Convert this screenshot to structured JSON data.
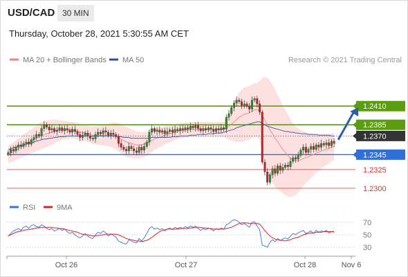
{
  "header": {
    "pair": "USD/CAD",
    "timeframe": "30 MIN",
    "timestamp": "Thursday, October 28, 2021 5:30:55 AM CET"
  },
  "legend": {
    "items": [
      {
        "label": "MA 20 + Bollinger Bands",
        "color": "#f08080"
      },
      {
        "label": "MA 50",
        "color": "#2e4e9a"
      }
    ],
    "credit": "Research © 2021 Trading Central"
  },
  "rsi_legend": {
    "items": [
      {
        "label": "RSI",
        "color": "#3a6fd8"
      },
      {
        "label": "9MA",
        "color": "#e02020"
      }
    ]
  },
  "colors": {
    "resistance": "#5a9e0f",
    "support_blue": "#2f6fd6",
    "support_red": "#e03030",
    "current": "#333333",
    "arrow": "#2a5db0",
    "band_fill": "#fde0e0"
  },
  "chart_data": [
    {
      "type": "candlestick",
      "title": "USD/CAD",
      "ylim": [
        1.229,
        1.247
      ],
      "x_ticks": [
        "Oct 26",
        "Oct 27",
        "Oct 28",
        "Nov 6"
      ],
      "levels": [
        {
          "value": 1.241,
          "label": "1.2410",
          "style": "resistance"
        },
        {
          "value": 1.2385,
          "label": "1.2385",
          "style": "resistance"
        },
        {
          "value": 1.237,
          "label": "1.2370",
          "style": "current"
        },
        {
          "value": 1.2345,
          "label": "1.2345",
          "style": "support_blue"
        },
        {
          "value": 1.2325,
          "label": "1.2325",
          "style": "support_red"
        },
        {
          "value": 1.23,
          "label": "1.2300",
          "style": "support_red"
        }
      ],
      "close": [
        1.2348,
        1.2352,
        1.235,
        1.2355,
        1.2358,
        1.2356,
        1.236,
        1.2362,
        1.2359,
        1.2365,
        1.2368,
        1.2372,
        1.237,
        1.238,
        1.2385,
        1.2382,
        1.2378,
        1.238,
        1.2376,
        1.2378,
        1.2381,
        1.2377,
        1.238,
        1.2378,
        1.2375,
        1.2379,
        1.2376,
        1.2372,
        1.2368,
        1.2371,
        1.2374,
        1.237,
        1.2367,
        1.2366,
        1.2372,
        1.2375,
        1.2373,
        1.2377,
        1.2375,
        1.2371,
        1.2374,
        1.2372,
        1.2369,
        1.236,
        1.2355,
        1.2352,
        1.235,
        1.2356,
        1.2353,
        1.235,
        1.2348,
        1.2355,
        1.2351,
        1.2356,
        1.2362,
        1.2375,
        1.238,
        1.2376,
        1.2378,
        1.2375,
        1.2377,
        1.2373,
        1.2376,
        1.2378,
        1.2375,
        1.2379,
        1.2377,
        1.238,
        1.2378,
        1.2381,
        1.2379,
        1.2383,
        1.2381,
        1.2384,
        1.238,
        1.2377,
        1.238,
        1.2378,
        1.2381,
        1.2379,
        1.2376,
        1.238,
        1.2378,
        1.2381,
        1.2379,
        1.2395,
        1.24,
        1.2408,
        1.2414,
        1.2418,
        1.2416,
        1.2411,
        1.2413,
        1.241,
        1.2406,
        1.2418,
        1.242,
        1.2413,
        1.2402,
        1.2335,
        1.2322,
        1.2308,
        1.2318,
        1.2326,
        1.232,
        1.233,
        1.2324,
        1.2328,
        1.2331,
        1.2329,
        1.2336,
        1.2341,
        1.2339,
        1.2344,
        1.2351,
        1.2355,
        1.2348,
        1.2352,
        1.2356,
        1.2352,
        1.2358,
        1.2355,
        1.236,
        1.2358,
        1.2361,
        1.2357,
        1.2363,
        1.236
      ],
      "ma50": [
        1.2352,
        1.2353,
        1.2354,
        1.2355,
        1.2356,
        1.2357,
        1.2358,
        1.2359,
        1.236,
        1.2361,
        1.2362,
        1.2363,
        1.2364,
        1.2365,
        1.2366,
        1.2366,
        1.2367,
        1.2367,
        1.2368,
        1.2368,
        1.2369,
        1.2369,
        1.2369,
        1.237,
        1.237,
        1.237,
        1.237,
        1.237,
        1.237,
        1.237,
        1.237,
        1.237,
        1.237,
        1.237,
        1.237,
        1.237,
        1.237,
        1.237,
        1.237,
        1.237,
        1.237,
        1.237,
        1.237,
        1.2369,
        1.2369,
        1.2368,
        1.2368,
        1.2368,
        1.2367,
        1.2367,
        1.2367,
        1.2367,
        1.2367,
        1.2367,
        1.2367,
        1.2367,
        1.2368,
        1.2368,
        1.2368,
        1.2368,
        1.2368,
        1.2368,
        1.2368,
        1.2368,
        1.2369,
        1.2369,
        1.2369,
        1.237,
        1.237,
        1.237,
        1.237,
        1.2371,
        1.2371,
        1.2371,
        1.2372,
        1.2372,
        1.2372,
        1.2372,
        1.2373,
        1.2373,
        1.2373,
        1.2374,
        1.2374,
        1.2374,
        1.2375,
        1.2376,
        1.2377,
        1.2378,
        1.2379,
        1.2381,
        1.2382,
        1.2383,
        1.2384,
        1.2385,
        1.2386,
        1.2387,
        1.2388,
        1.2389,
        1.2389,
        1.2387,
        1.2385,
        1.2383,
        1.2382,
        1.2381,
        1.238,
        1.2379,
        1.2378,
        1.2377,
        1.2376,
        1.2376,
        1.2375,
        1.2375,
        1.2374,
        1.2374,
        1.2373,
        1.2373,
        1.2373,
        1.2372,
        1.2372,
        1.2372,
        1.2372,
        1.2371,
        1.2371,
        1.2371,
        1.2371,
        1.2371,
        1.237,
        1.237
      ],
      "ma20": [
        1.2345,
        1.2347,
        1.2349,
        1.2351,
        1.2353,
        1.2355,
        1.2357,
        1.2359,
        1.2361,
        1.2363,
        1.2365,
        1.2367,
        1.2369,
        1.2371,
        1.2372,
        1.2373,
        1.2374,
        1.2375,
        1.2376,
        1.2377,
        1.2377,
        1.2378,
        1.2378,
        1.2378,
        1.2378,
        1.2378,
        1.2377,
        1.2376,
        1.2375,
        1.2375,
        1.2374,
        1.2373,
        1.2372,
        1.2371,
        1.2371,
        1.2371,
        1.2371,
        1.2371,
        1.2371,
        1.2371,
        1.2371,
        1.2371,
        1.237,
        1.2368,
        1.2366,
        1.2364,
        1.2362,
        1.2361,
        1.236,
        1.2359,
        1.2358,
        1.2358,
        1.2358,
        1.2359,
        1.236,
        1.2362,
        1.2364,
        1.2366,
        1.2367,
        1.2368,
        1.2369,
        1.2371,
        1.2372,
        1.2373,
        1.2374,
        1.2375,
        1.2376,
        1.2377,
        1.2377,
        1.2378,
        1.2378,
        1.2378,
        1.2379,
        1.2379,
        1.2379,
        1.2379,
        1.2379,
        1.2379,
        1.2379,
        1.2379,
        1.2379,
        1.2379,
        1.2379,
        1.2379,
        1.2379,
        1.2381,
        1.2383,
        1.2386,
        1.2389,
        1.2392,
        1.2395,
        1.2397,
        1.2399,
        1.24,
        1.2401,
        1.2403,
        1.2405,
        1.2405,
        1.2404,
        1.2398,
        1.2391,
        1.2384,
        1.2378,
        1.2373,
        1.2367,
        1.2362,
        1.2357,
        1.2352,
        1.2348,
        1.2344,
        1.234,
        1.2338,
        1.2337,
        1.2337,
        1.2338,
        1.234,
        1.2341,
        1.2342,
        1.2344,
        1.2345,
        1.2347,
        1.2348,
        1.235,
        1.2351,
        1.2352,
        1.2353,
        1.2355,
        1.2356
      ],
      "bollinger_width": [
        0.0012,
        0.0012,
        0.0013,
        0.0013,
        0.0014,
        0.0014,
        0.0015,
        0.0015,
        0.0016,
        0.0016,
        0.0017,
        0.0017,
        0.0018,
        0.0018,
        0.0018,
        0.0018,
        0.0017,
        0.0017,
        0.0016,
        0.0015,
        0.0014,
        0.0013,
        0.0012,
        0.0012,
        0.0011,
        0.0011,
        0.0011,
        0.0011,
        0.0011,
        0.0011,
        0.0011,
        0.0011,
        0.0011,
        0.0012,
        0.0012,
        0.0013,
        0.0013,
        0.0014,
        0.0014,
        0.0015,
        0.0016,
        0.0017,
        0.0018,
        0.0019,
        0.002,
        0.002,
        0.002,
        0.002,
        0.0019,
        0.0019,
        0.0018,
        0.0018,
        0.0017,
        0.0017,
        0.0016,
        0.0016,
        0.0015,
        0.0015,
        0.0014,
        0.0013,
        0.0013,
        0.0012,
        0.0012,
        0.0011,
        0.0011,
        0.001,
        0.001,
        0.001,
        0.001,
        0.001,
        0.001,
        0.001,
        0.001,
        0.001,
        0.001,
        0.001,
        0.001,
        0.001,
        0.001,
        0.001,
        0.001,
        0.001,
        0.001,
        0.001,
        0.001,
        0.0014,
        0.0018,
        0.0022,
        0.0026,
        0.003,
        0.0033,
        0.0035,
        0.0036,
        0.0036,
        0.0036,
        0.0036,
        0.0036,
        0.0036,
        0.004,
        0.005,
        0.0058,
        0.0064,
        0.0066,
        0.0066,
        0.0065,
        0.0063,
        0.0061,
        0.0059,
        0.0057,
        0.0055,
        0.0052,
        0.0049,
        0.0046,
        0.0043,
        0.004,
        0.0037,
        0.0034,
        0.0032,
        0.003,
        0.0028,
        0.0026,
        0.0025,
        0.0023,
        0.0022,
        0.0021,
        0.002,
        0.0019,
        0.0018
      ],
      "projection": {
        "from": 1.2365,
        "to": 1.241
      }
    },
    {
      "type": "line",
      "title": "RSI",
      "ylim": [
        20,
        80
      ],
      "y_ticks": [
        70,
        50,
        30
      ],
      "series": [
        {
          "name": "RSI",
          "values": [
            48,
            52,
            56,
            58,
            60,
            57,
            62,
            64,
            60,
            65,
            66,
            63,
            62,
            66,
            64,
            60,
            58,
            60,
            56,
            58,
            60,
            57,
            59,
            55,
            52,
            54,
            50,
            47,
            45,
            48,
            52,
            48,
            45,
            44,
            50,
            54,
            52,
            56,
            53,
            48,
            51,
            49,
            46,
            40,
            38,
            36,
            35,
            42,
            40,
            38,
            37,
            44,
            40,
            45,
            52,
            60,
            63,
            59,
            61,
            58,
            60,
            56,
            59,
            61,
            58,
            62,
            60,
            62,
            60,
            63,
            61,
            64,
            62,
            64,
            60,
            57,
            60,
            58,
            61,
            59,
            56,
            60,
            58,
            61,
            59,
            66,
            68,
            72,
            74,
            73,
            70,
            66,
            68,
            65,
            62,
            70,
            71,
            64,
            58,
            33,
            32,
            30,
            38,
            42,
            39,
            44,
            41,
            43,
            45,
            43,
            48,
            52,
            50,
            53,
            55,
            57,
            52,
            54,
            56,
            52,
            57,
            54,
            56,
            55,
            57,
            53,
            55,
            54
          ]
        },
        {
          "name": "9MA",
          "values": [
            48,
            50,
            52,
            54,
            55,
            56,
            57,
            58,
            58,
            59,
            60,
            61,
            61,
            62,
            62,
            62,
            62,
            62,
            61,
            61,
            60,
            60,
            59,
            58,
            57,
            56,
            55,
            54,
            52,
            51,
            50,
            50,
            49,
            48,
            48,
            49,
            49,
            50,
            51,
            51,
            51,
            51,
            51,
            50,
            48,
            46,
            44,
            43,
            42,
            41,
            40,
            40,
            39,
            40,
            41,
            43,
            46,
            49,
            52,
            55,
            57,
            58,
            59,
            59,
            59,
            59,
            59,
            60,
            60,
            60,
            60,
            61,
            61,
            62,
            62,
            62,
            61,
            61,
            60,
            60,
            59,
            59,
            59,
            59,
            59,
            60,
            61,
            62,
            64,
            66,
            68,
            69,
            69,
            69,
            68,
            68,
            68,
            68,
            67,
            62,
            57,
            52,
            48,
            45,
            43,
            42,
            41,
            41,
            40,
            41,
            42,
            44,
            45,
            46,
            48,
            50,
            51,
            52,
            53,
            53,
            54,
            54,
            54,
            55,
            55,
            55,
            55,
            55
          ]
        }
      ]
    }
  ]
}
